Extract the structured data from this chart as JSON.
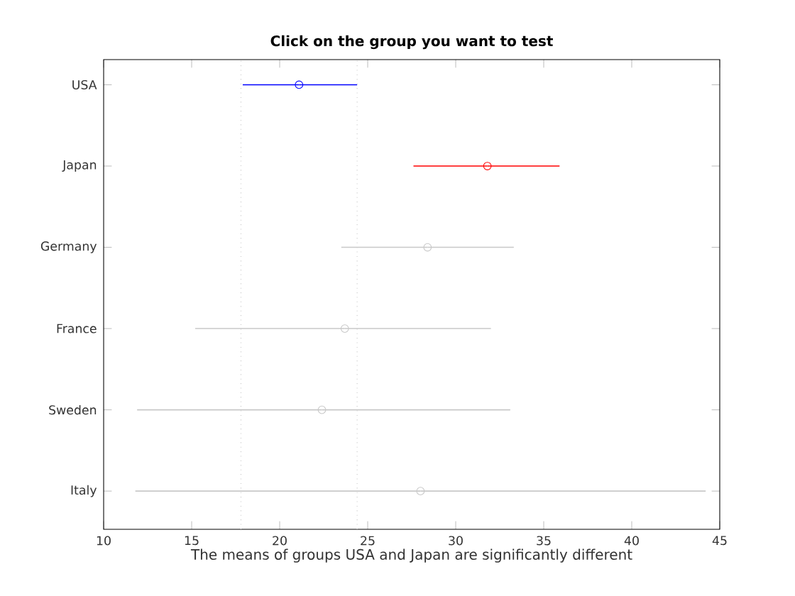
{
  "chart_data": {
    "type": "scatter",
    "orientation": "horizontal",
    "title": "Click on the group you want to test",
    "xlabel": "The means of groups USA and Japan are significantly different",
    "categories": [
      "USA",
      "Japan",
      "Germany",
      "France",
      "Sweden",
      "Italy"
    ],
    "values": [
      21.1,
      31.8,
      28.4,
      23.7,
      22.4,
      28.0
    ],
    "errors": [
      [
        17.9,
        24.4
      ],
      [
        27.6,
        35.9
      ],
      [
        23.5,
        33.3
      ],
      [
        15.2,
        32.0
      ],
      [
        11.9,
        33.1
      ],
      [
        11.8,
        44.2
      ]
    ],
    "colors": [
      "#0000ff",
      "#ff0000",
      "#c8c8c8",
      "#c8c8c8",
      "#c8c8c8",
      "#c8c8c8"
    ],
    "marker": "circle",
    "xlim": [
      10,
      45
    ],
    "xticks": [
      10,
      15,
      20,
      25,
      30,
      35,
      40,
      45
    ],
    "ref_lines": [
      {
        "axis": "x",
        "value": 17.8,
        "color": "#c8c8c8",
        "line_style": "dotted"
      },
      {
        "axis": "x",
        "value": 24.4,
        "color": "#c8c8c8",
        "line_style": "dotted"
      }
    ],
    "grid": false
  }
}
